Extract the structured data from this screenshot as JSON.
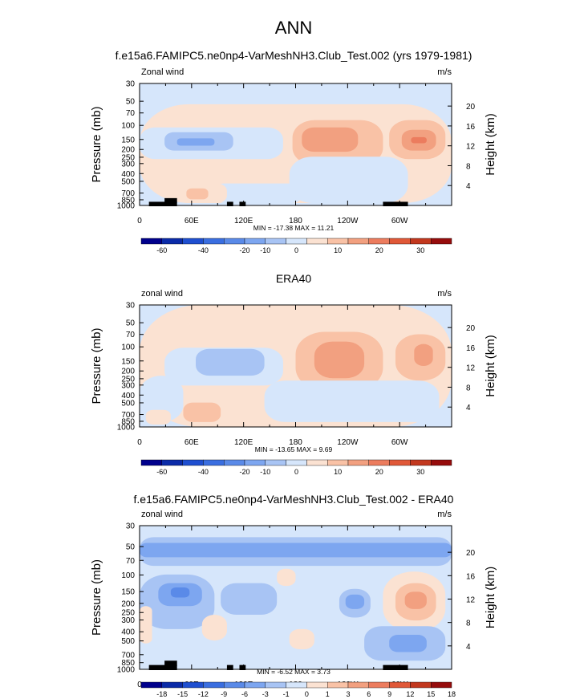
{
  "figure": {
    "main_title": "ANN",
    "x_ticks": [
      "0",
      "60E",
      "120E",
      "180",
      "120W",
      "60W"
    ],
    "y_ticks": [
      "30",
      "50",
      "70",
      "100",
      "150",
      "200",
      "250",
      "300",
      "400",
      "500",
      "700",
      "850",
      "1000"
    ],
    "h_ticks": [
      "20",
      "16",
      "12",
      "8",
      "4"
    ]
  },
  "chart_data": [
    {
      "type": "heatmap",
      "title": "f.e15a6.FAMIPC5.ne0np4-VarMeshNH3.Club_Test.002 (yrs 1979-1981)",
      "left_label": "Zonal wind",
      "units": "m/s",
      "ylabel": "Pressure (mb)",
      "ylabel_right": "Height (km)",
      "stats": "MIN = -17.38   MAX =  11.21",
      "colorbar_labels": [
        "-60",
        "-40",
        "-20",
        "-10",
        "0",
        "10",
        "20",
        "30"
      ]
    },
    {
      "type": "heatmap",
      "title": "ERA40",
      "left_label": "zonal wind",
      "units": "m/s",
      "ylabel": "Pressure (mb)",
      "ylabel_right": "Height (km)",
      "stats": "MIN = -13.65   MAX =   9.69",
      "colorbar_labels": [
        "-60",
        "-40",
        "-20",
        "-10",
        "0",
        "10",
        "20",
        "30"
      ]
    },
    {
      "type": "heatmap",
      "title": "f.e15a6.FAMIPC5.ne0np4-VarMeshNH3.Club_Test.002 - ERA40",
      "left_label": "zonal wind",
      "units": "m/s",
      "ylabel": "Pressure (mb)",
      "ylabel_right": "Height (km)",
      "stats": "MIN =  -6.52   MAX =   3.73",
      "colorbar_labels": [
        "-18",
        "-15",
        "-12",
        "-9",
        "-6",
        "-3",
        "-1",
        "0",
        "1",
        "3",
        "6",
        "9",
        "12",
        "15",
        "18"
      ]
    }
  ],
  "colors": {
    "scale": [
      "#00008c",
      "#0b2ba8",
      "#1f4fd0",
      "#3a6ee0",
      "#5a8ae8",
      "#7da6f0",
      "#a8c4f4",
      "#d6e6fb",
      "#fbe2d2",
      "#f9c2a6",
      "#f2a080",
      "#ec7c5e",
      "#e05838",
      "#c2381e",
      "#960c0c"
    ]
  }
}
